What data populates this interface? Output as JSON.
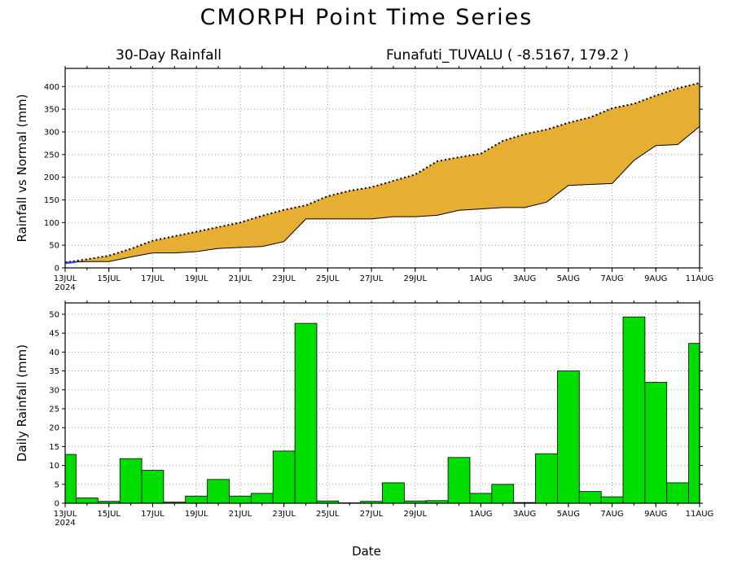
{
  "page": {
    "title": "CMORPH Point Time Series",
    "subtitle_left": "30-Day Rainfall",
    "subtitle_right": "Funafuti_TUVALU ( -8.5167, 179.2 )",
    "xlabel": "Date"
  },
  "chart_data": [
    {
      "type": "area",
      "ylabel": "Rainfall vs Normal (mm)",
      "ylim": [
        0,
        440
      ],
      "yticks": [
        0,
        50,
        100,
        150,
        200,
        250,
        300,
        350,
        400
      ],
      "xlim": [
        0,
        29
      ],
      "xticks": [
        {
          "x": 0,
          "label": "13JUL",
          "sublabel": "2024"
        },
        {
          "x": 2,
          "label": "15JUL"
        },
        {
          "x": 4,
          "label": "17JUL"
        },
        {
          "x": 6,
          "label": "19JUL"
        },
        {
          "x": 8,
          "label": "21JUL"
        },
        {
          "x": 10,
          "label": "23JUL"
        },
        {
          "x": 12,
          "label": "25JUL"
        },
        {
          "x": 14,
          "label": "27JUL"
        },
        {
          "x": 16,
          "label": "29JUL"
        },
        {
          "x": 19,
          "label": "1AUG"
        },
        {
          "x": 21,
          "label": "3AUG"
        },
        {
          "x": 23,
          "label": "5AUG"
        },
        {
          "x": 25,
          "label": "7AUG"
        },
        {
          "x": 27,
          "label": "9AUG"
        },
        {
          "x": 29,
          "label": "11AUG"
        }
      ],
      "grid": true,
      "colors": {
        "fill_above_normal": "#e6ae33",
        "actual": "#000000",
        "normal": "#000000",
        "start_segment": "#2040ff"
      },
      "series": [
        {
          "values": [
            12,
            14,
            14,
            24,
            33,
            33,
            36,
            43,
            45,
            47,
            58,
            108,
            108,
            108,
            108,
            113,
            113,
            116,
            127,
            130,
            133,
            133,
            145,
            182,
            184,
            186,
            237,
            270,
            272,
            312
          ]
        },
        {
          "values": [
            12,
            19,
            27,
            42,
            60,
            70,
            80,
            90,
            100,
            115,
            128,
            138,
            158,
            170,
            178,
            192,
            206,
            235,
            244,
            252,
            280,
            295,
            305,
            320,
            332,
            352,
            362,
            380,
            396,
            408
          ]
        }
      ]
    },
    {
      "type": "bar",
      "ylabel": "Daily Rainfall (mm)",
      "ylim": [
        0,
        53
      ],
      "yticks": [
        0,
        5,
        10,
        15,
        20,
        25,
        30,
        35,
        40,
        45,
        50
      ],
      "xlim": [
        0,
        29
      ],
      "xticks": [
        {
          "x": 0,
          "label": "13JUL",
          "sublabel": "2024"
        },
        {
          "x": 2,
          "label": "15JUL"
        },
        {
          "x": 4,
          "label": "17JUL"
        },
        {
          "x": 6,
          "label": "19JUL"
        },
        {
          "x": 8,
          "label": "21JUL"
        },
        {
          "x": 10,
          "label": "23JUL"
        },
        {
          "x": 12,
          "label": "25JUL"
        },
        {
          "x": 14,
          "label": "27JUL"
        },
        {
          "x": 16,
          "label": "29JUL"
        },
        {
          "x": 19,
          "label": "1AUG"
        },
        {
          "x": 21,
          "label": "3AUG"
        },
        {
          "x": 23,
          "label": "5AUG"
        },
        {
          "x": 25,
          "label": "7AUG"
        },
        {
          "x": 27,
          "label": "9AUG"
        },
        {
          "x": 29,
          "label": "11AUG"
        }
      ],
      "grid": true,
      "colors": {
        "bar": "#00dd00"
      },
      "values": [
        12.9,
        1.4,
        0.5,
        11.8,
        8.7,
        0.3,
        1.9,
        6.3,
        1.9,
        2.6,
        13.8,
        47.6,
        0.6,
        0.1,
        0.5,
        5.4,
        0.6,
        0.7,
        12.1,
        2.6,
        5.0,
        0.2,
        13.1,
        35.0,
        3.1,
        1.7,
        49.3,
        32.0,
        5.4,
        42.3
      ]
    }
  ]
}
